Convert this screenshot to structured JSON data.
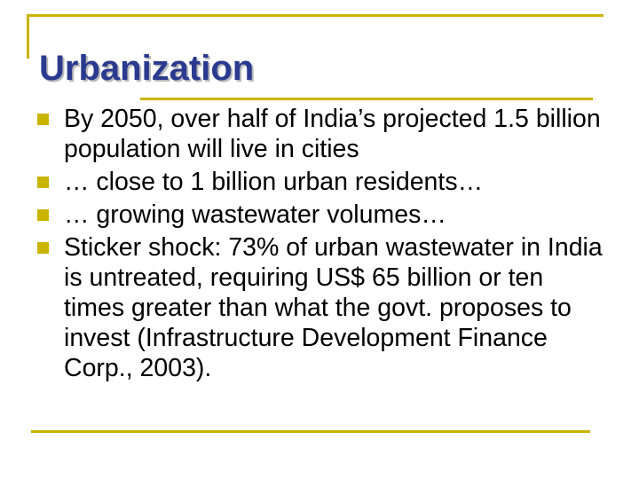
{
  "slide": {
    "title": "Urbanization",
    "bullets": [
      {
        "text": "By 2050, over half of India’s projected 1.5 billion population will live in cities"
      },
      {
        "text": "… close to 1 billion urban residents…"
      },
      {
        "text": "… growing wastewater volumes…"
      },
      {
        "text": "Sticker shock: 73% of urban wastewater in India is untreated, requiring US$ 65 billion or ten times greater than what the govt. proposes to invest (Infrastructure Development Finance Corp., 2003)."
      }
    ]
  },
  "colors": {
    "accent": "#c9b400",
    "title": "#2a3a8f",
    "text": "#000000",
    "background": "#ffffff"
  }
}
